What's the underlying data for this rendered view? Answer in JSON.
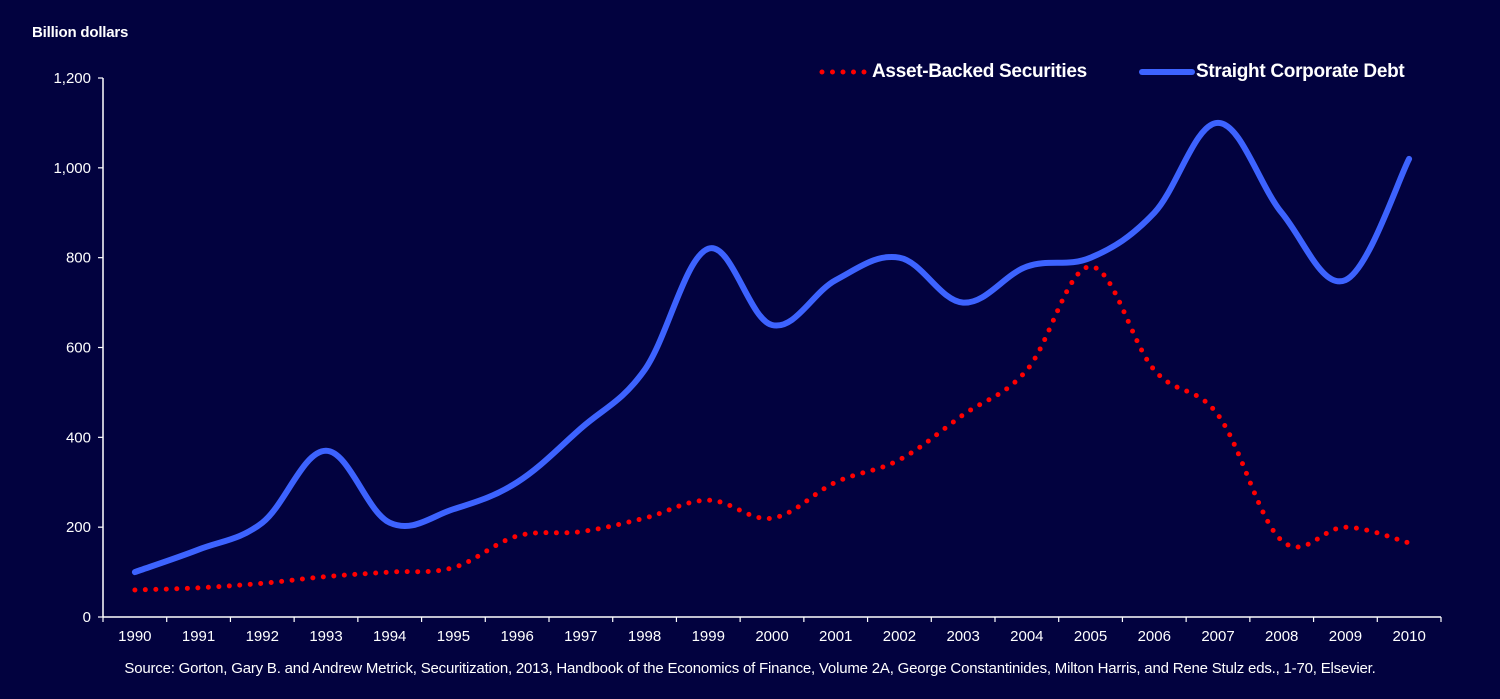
{
  "chart_data": {
    "type": "line",
    "ylabel": "Billion  dollars",
    "xlabel": "",
    "x": [
      "1990",
      "1991",
      "1992",
      "1993",
      "1994",
      "1995",
      "1996",
      "1997",
      "1998",
      "1999",
      "2000",
      "2001",
      "2002",
      "2003",
      "2004",
      "2005",
      "2006",
      "2007",
      "2008",
      "2009",
      "2010"
    ],
    "ylim": [
      0,
      1200
    ],
    "yticks": [
      0,
      200,
      400,
      600,
      800,
      1000,
      1200
    ],
    "ytick_labels": [
      "0",
      "200",
      "400",
      "600",
      "800",
      "1,000",
      "1,200"
    ],
    "grid": false,
    "legend_position": "top-right",
    "series": [
      {
        "name": "Asset-Backed Securities",
        "color": "#ff0000",
        "style": "dotted",
        "values": [
          60,
          65,
          75,
          90,
          100,
          110,
          180,
          190,
          220,
          260,
          220,
          300,
          350,
          450,
          550,
          780,
          550,
          450,
          170,
          200,
          165
        ]
      },
      {
        "name": "Straight Corporate Debt",
        "color": "#3d63ff",
        "style": "solid",
        "values": [
          100,
          150,
          210,
          370,
          210,
          240,
          300,
          420,
          550,
          820,
          650,
          750,
          800,
          700,
          780,
          800,
          900,
          1100,
          900,
          750,
          1020
        ]
      }
    ]
  },
  "source": "Source: Gorton, Gary B. and Andrew Metrick, Securitization, 2013, Handbook of the Economics of Finance, Volume 2A, George Constantinides, Milton Harris, and Rene Stulz eds., 1-70, Elsevier."
}
